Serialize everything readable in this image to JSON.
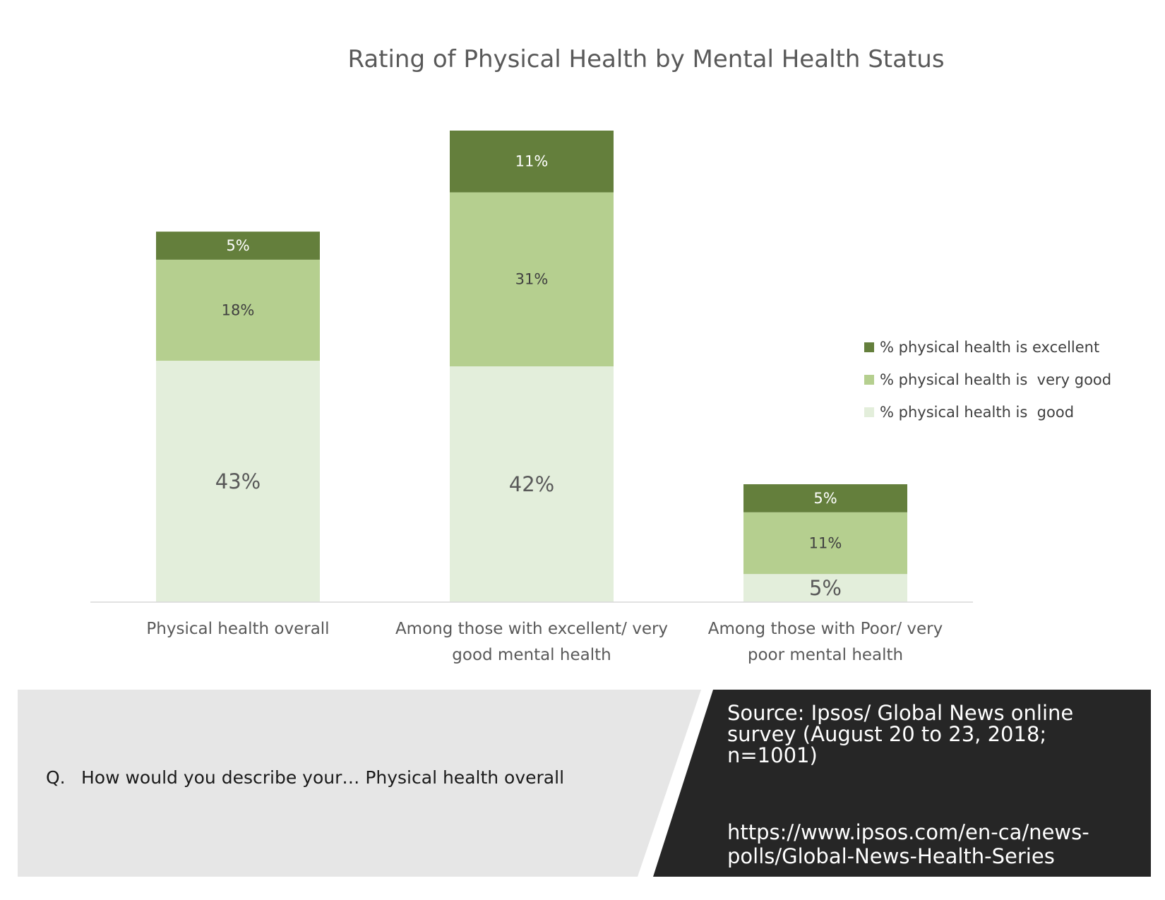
{
  "chart_data": {
    "type": "bar",
    "stacked": true,
    "title": "Rating of Physical Health by Mental Health Status",
    "categories": [
      [
        "Physical health overall"
      ],
      [
        "Among those with excellent/ very",
        "good mental health"
      ],
      [
        "Among those with Poor/ very",
        "poor mental health"
      ]
    ],
    "series": [
      {
        "name": "% physical health is  good",
        "values": [
          43,
          42,
          5
        ],
        "color": "#e3eedb",
        "label_color": "#595959",
        "label_size": "large"
      },
      {
        "name": "% physical health is  very good",
        "values": [
          18,
          31,
          11
        ],
        "color": "#b5cf8f",
        "label_color": "#404040",
        "label_size": "small"
      },
      {
        "name": "% physical health is excellent",
        "values": [
          5,
          11,
          5
        ],
        "color": "#647f3c",
        "label_color": "#ffffff",
        "label_size": "small"
      }
    ],
    "data_labels": [
      [
        "43%",
        "42%",
        "5%"
      ],
      [
        "18%",
        "31%",
        "11%"
      ],
      [
        "5%",
        "11%",
        "5%"
      ]
    ],
    "legend_order": [
      2,
      1,
      0
    ],
    "legend_position": "right",
    "ylim": [
      0,
      84
    ],
    "grid": false
  },
  "footer": {
    "question_prefix": "Q.",
    "question": "How would you describe your… Physical health overall",
    "source": "Source: Ipsos/ Global News online survey (August 20 to 23, 2018; n=1001)",
    "url": "https://www.ipsos.com/en-ca/news-polls/Global-News-Health-Series",
    "left_bg": "#e6e6e6",
    "right_bg": "#262626"
  }
}
